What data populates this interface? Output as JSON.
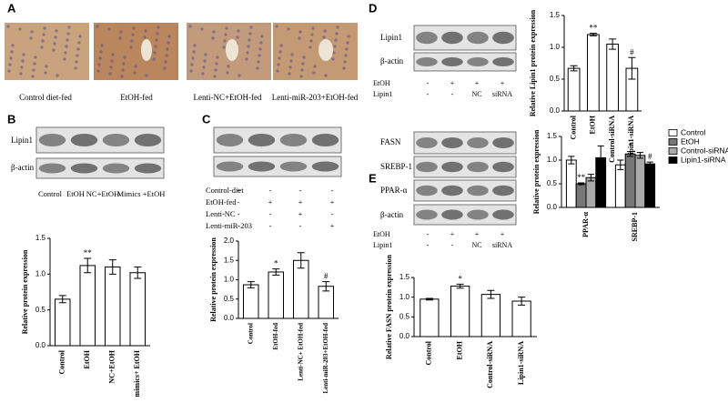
{
  "chart_data": [
    {
      "type": "bar",
      "y_label": "Relative protein expression",
      "categories": [
        "Control",
        "EtOH",
        "NC+EtOH",
        "mimics+ EtOH"
      ],
      "values": [
        0.65,
        1.12,
        1.1,
        1.02
      ],
      "errors": [
        0.05,
        0.1,
        0.1,
        0.08
      ],
      "annotations": [
        null,
        "**",
        null,
        null
      ],
      "color": "#ffffff",
      "ylim": [
        0,
        1.5
      ],
      "yticks": [
        {
          "value": 0,
          "label": "0.0"
        },
        {
          "value": 0.5,
          "label": "0.5"
        },
        {
          "value": 1,
          "label": "1.0"
        },
        {
          "value": 1.5,
          "label": "1.5"
        }
      ]
    },
    {
      "type": "bar",
      "y_label": "Relative protein expression",
      "categories": [
        "Control",
        "EtOH-fed",
        "Lenti-NC+ EtOH-fed",
        "Lenti-miR-203+EtOH-fed"
      ],
      "values": [
        0.87,
        1.2,
        1.5,
        0.83
      ],
      "errors": [
        0.08,
        0.08,
        0.2,
        0.12
      ],
      "annotations": [
        null,
        "*",
        null,
        "#"
      ],
      "color": "#ffffff",
      "ylim": [
        0,
        2
      ],
      "yticks": [
        {
          "value": 0,
          "label": "0.0"
        },
        {
          "value": 0.5,
          "label": "0.5"
        },
        {
          "value": 1,
          "label": "1.0"
        },
        {
          "value": 1.5,
          "label": "1.5"
        },
        {
          "value": 2,
          "label": "2.0"
        }
      ]
    },
    {
      "type": "bar",
      "y_label": "Relative Lipin1 protein expression",
      "categories": [
        "Control",
        "EtOH",
        "Control-siRNA",
        "Lipin1-siRNA"
      ],
      "values": [
        0.67,
        1.2,
        1.05,
        0.67
      ],
      "errors": [
        0.04,
        0.02,
        0.08,
        0.17
      ],
      "annotations": [
        null,
        "**",
        null,
        "#"
      ],
      "color": "#ffffff",
      "ylim": [
        0,
        1.5
      ],
      "yticks": [
        {
          "value": 0,
          "label": "0.0"
        },
        {
          "value": 0.5,
          "label": "0.5"
        },
        {
          "value": 1,
          "label": "1.0"
        },
        {
          "value": 1.5,
          "label": "1.5"
        }
      ]
    },
    {
      "type": "grouped-bar",
      "y_label": "Relative protein expression",
      "categories": [
        "PPAR-α",
        "SREBP-1"
      ],
      "series": [
        {
          "name": "Control",
          "color": "#ffffff",
          "values": [
            1.0,
            0.9
          ],
          "errors": [
            0.08,
            0.1
          ]
        },
        {
          "name": "EtOH",
          "color": "#777777",
          "values": [
            0.5,
            1.13
          ],
          "errors": [
            0.02,
            0.05
          ],
          "annotations": [
            "**",
            "*"
          ]
        },
        {
          "name": "Control-siRNA",
          "color": "#aaaaaa",
          "values": [
            0.63,
            1.1
          ],
          "errors": [
            0.07,
            0.06
          ]
        },
        {
          "name": "Lipin1-siRNA",
          "color": "#000000",
          "values": [
            1.05,
            0.92
          ],
          "errors": [
            0.25,
            0.04
          ],
          "annotations": [
            null,
            "#"
          ]
        }
      ],
      "ylim": [
        0,
        1.5
      ],
      "yticks": [
        {
          "value": 0,
          "label": "0.0"
        },
        {
          "value": 0.5,
          "label": "0.5"
        },
        {
          "value": 1,
          "label": "1.0"
        },
        {
          "value": 1.5,
          "label": "1.5"
        }
      ]
    },
    {
      "type": "bar",
      "y_label": "Relative FASN protein expression",
      "categories": [
        "Control",
        "EtOH",
        "Control-siRNA",
        "Lipin1-siRNA"
      ],
      "values": [
        0.95,
        1.28,
        1.07,
        0.9
      ],
      "errors": [
        0.02,
        0.05,
        0.1,
        0.1
      ],
      "annotations": [
        null,
        "*",
        null,
        null
      ],
      "color": "#ffffff",
      "ylim": [
        0,
        1.5
      ],
      "yticks": [
        {
          "value": 0,
          "label": "0.0"
        },
        {
          "value": 0.5,
          "label": "0.5"
        },
        {
          "value": 1,
          "label": "1.0"
        },
        {
          "value": 1.5,
          "label": "1.5"
        }
      ]
    }
  ],
  "figure": {
    "panel_labels": [
      "A",
      "B",
      "C",
      "D",
      "E"
    ],
    "histology_captions": [
      "Control diet-fed",
      "EtOH-fed",
      "Lenti-NC+EtOH-fed",
      "Lenti-miR-203+EtOH-fed"
    ],
    "blot_b": {
      "rows": [
        "Lipin1",
        "β-actin"
      ],
      "lanes": [
        "Control",
        "EtOH",
        "NC+EtOH",
        "Mimics +EtOH"
      ]
    },
    "blot_c": {
      "conditions": [
        {
          "label": "Control-diet",
          "signs": [
            "+",
            "-",
            "-",
            "-"
          ]
        },
        {
          "label": "EtOH-fed",
          "signs": [
            "-",
            "+",
            "+",
            "+"
          ]
        },
        {
          "label": "Lenti-NC",
          "signs": [
            "-",
            "-",
            "+",
            "-"
          ]
        },
        {
          "label": "Lenti-miR-203",
          "signs": [
            "-",
            "-",
            "-",
            "+"
          ]
        }
      ]
    },
    "blot_d": {
      "rows": [
        "Lipin1",
        "β-actin"
      ],
      "conditions": [
        {
          "label": "EtOH",
          "signs": [
            "-",
            "+",
            "+",
            "+"
          ]
        },
        {
          "label": "Lipin1",
          "signs": [
            "-",
            "-",
            "NC",
            "siRNA"
          ]
        }
      ]
    },
    "blot_e": {
      "rows": [
        "FASN",
        "SREBP-1",
        "PPAR-α",
        "β-actin"
      ],
      "conditions": [
        {
          "label": "EtOH",
          "signs": [
            "-",
            "+",
            "+",
            "+"
          ]
        },
        {
          "label": "Lipin1",
          "signs": [
            "-",
            "-",
            "NC",
            "siRNA"
          ]
        }
      ]
    }
  }
}
